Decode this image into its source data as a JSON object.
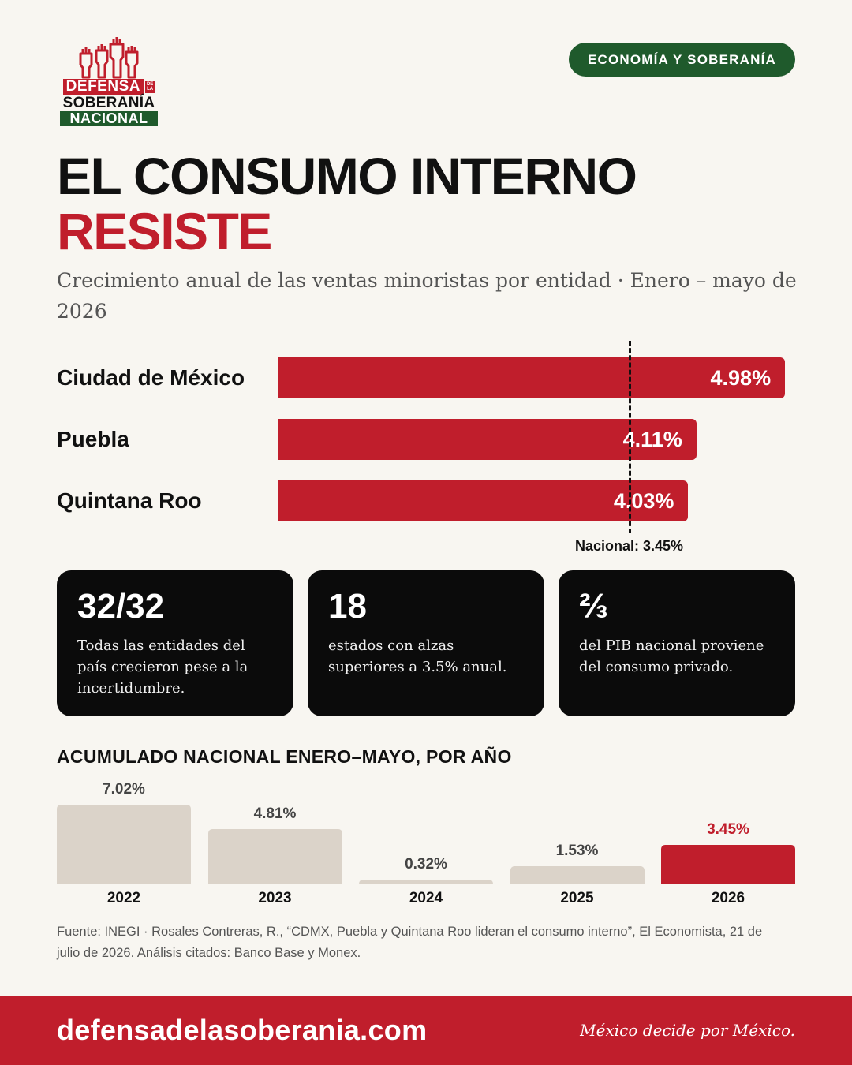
{
  "logo": {
    "line1": "DEFENSA",
    "small_a": "DE",
    "small_b": "LA",
    "line2": "SOBERANÍA",
    "line3": "NACIONAL"
  },
  "tag": "ECONOMÍA Y SOBERANÍA",
  "title": {
    "line1": "EL CONSUMO INTERNO",
    "line2": "RESISTE"
  },
  "subtitle": "Crecimiento anual de las ventas minoristas por entidad · Enero – mayo de 2026",
  "stats": [
    {
      "value": "32/32",
      "text": "Todas las entidades del país crecieron pese a la incertidumbre."
    },
    {
      "value": "18",
      "text": "estados con alzas superiores a 3.5% anual."
    },
    {
      "value": "⅔",
      "text": "del PIB nacional proviene del consumo privado."
    }
  ],
  "source": "Fuente: INEGI · Rosales Contreras, R., “CDMX, Puebla y Quintana Roo lideran el consumo interno”, El Economista, 21 de julio de 2026. Análisis citados: Banco Base y Monex.",
  "footer": {
    "url": "defensadelasoberania.com",
    "motto": "México decide por México."
  },
  "colors": {
    "red": "#c01e2c",
    "green": "#1f5a2c",
    "beige_bar": "#dbd3c9",
    "background": "#f8f6f1"
  },
  "chart_data": [
    {
      "type": "bar",
      "orientation": "horizontal",
      "categories": [
        "Ciudad de México",
        "Puebla",
        "Quintana Roo"
      ],
      "values": [
        4.98,
        4.11,
        4.03
      ],
      "value_labels": [
        "4.98%",
        "4.11%",
        "4.03%"
      ],
      "reference_line": {
        "value": 3.45,
        "label": "Nacional: 3.45%"
      },
      "xlim": [
        0,
        5.08
      ]
    },
    {
      "type": "bar",
      "title": "ACUMULADO NACIONAL ENERO–MAYO, POR AÑO",
      "categories": [
        "2022",
        "2023",
        "2024",
        "2025",
        "2026"
      ],
      "values": [
        7.02,
        4.81,
        0.32,
        1.53,
        3.45
      ],
      "value_labels": [
        "7.02%",
        "4.81%",
        "0.32%",
        "1.53%",
        "3.45%"
      ],
      "highlight": "2026",
      "ylim": [
        0,
        7.02
      ]
    }
  ]
}
